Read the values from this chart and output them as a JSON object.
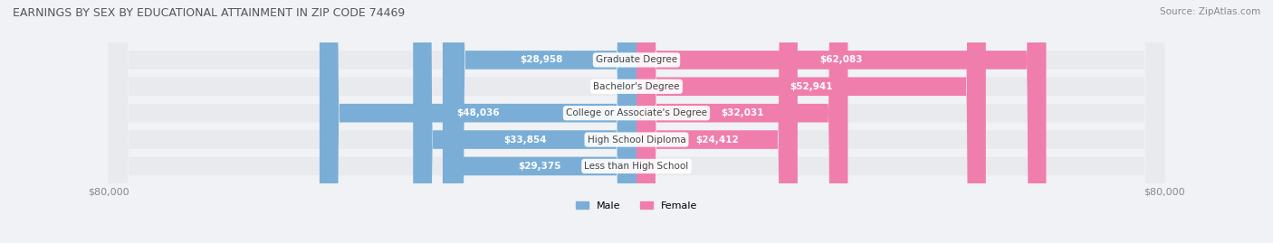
{
  "title": "EARNINGS BY SEX BY EDUCATIONAL ATTAINMENT IN ZIP CODE 74469",
  "source": "Source: ZipAtlas.com",
  "categories": [
    "Less than High School",
    "High School Diploma",
    "College or Associate's Degree",
    "Bachelor's Degree",
    "Graduate Degree"
  ],
  "male_values": [
    29375,
    33854,
    48036,
    0,
    28958
  ],
  "female_values": [
    0,
    24412,
    32031,
    52941,
    62083
  ],
  "max_val": 80000,
  "male_color": "#7aaed6",
  "female_color": "#f07ead",
  "male_color_dark": "#5b8fc4",
  "female_color_dark": "#e8609a",
  "bg_color": "#f0f2f5",
  "bar_bg": "#dde2ea",
  "title_color": "#555555",
  "label_color": "#555555",
  "axis_label_color": "#888888",
  "bar_height": 0.68,
  "figsize": [
    14.06,
    2.69
  ],
  "dpi": 100
}
